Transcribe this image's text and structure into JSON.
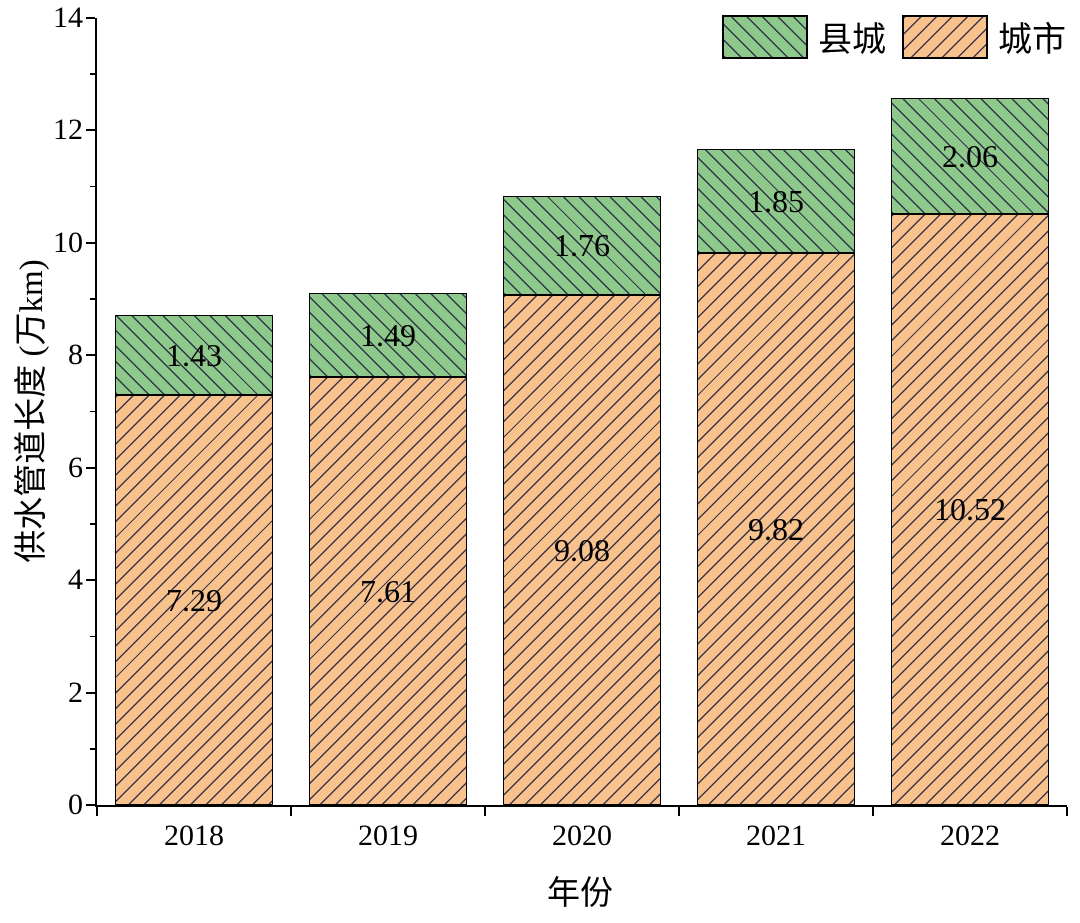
{
  "chart_data": {
    "type": "bar",
    "stacked": true,
    "categories": [
      "2018",
      "2019",
      "2020",
      "2021",
      "2022"
    ],
    "series": [
      {
        "name": "城市",
        "color": "#F8C28D",
        "hatch": "/",
        "values": [
          7.29,
          7.61,
          9.08,
          9.82,
          10.52
        ]
      },
      {
        "name": "县城",
        "color": "#8EC88A",
        "hatch": "\\",
        "values": [
          1.43,
          1.49,
          1.76,
          1.85,
          2.06
        ]
      }
    ],
    "title": "",
    "xlabel": "年份",
    "ylabel": "供水管道长度 (万km)",
    "ylim": [
      0,
      14
    ],
    "ytick_step": 2,
    "yticks": [
      0,
      2,
      4,
      6,
      8,
      10,
      12,
      14
    ],
    "grid": false,
    "legend_position": "top-right",
    "value_labels_visible": true
  },
  "legend": {
    "items": [
      {
        "label": "县城"
      },
      {
        "label": "城市"
      }
    ]
  }
}
